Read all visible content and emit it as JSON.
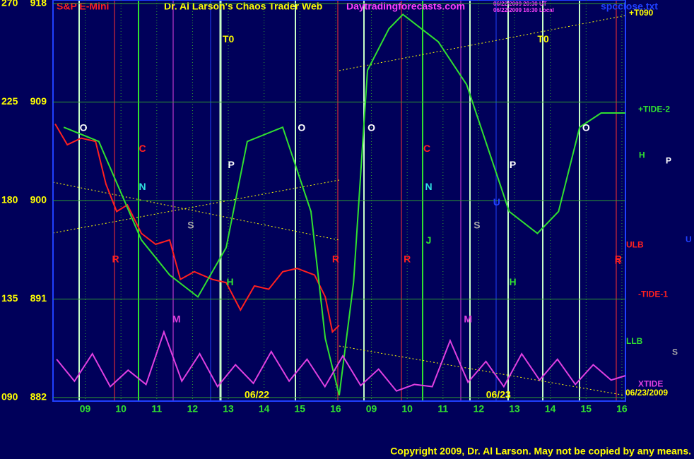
{
  "chart_data": {
    "type": "line",
    "title": "Dr. Al Larson's Chaos Trader Web",
    "instrument": "S&P E-Mini",
    "site": "Daytradingforecasts.com",
    "stamp": [
      "06/22/2009 20:30 UT",
      "06/22/2009 16:30 Local"
    ],
    "file": "spcclose.txt",
    "copyright": "Copyright 2009, Dr. Al Larson. May not be copied by any means.",
    "dates": [
      {
        "x": 5.8,
        "label": "06/22"
      },
      {
        "x": 12.55,
        "label": "06/23"
      }
    ],
    "xlim": [
      0.1,
      16.1
    ],
    "xticks": [
      {
        "value": 1,
        "label": "09"
      },
      {
        "value": 2,
        "label": "10"
      },
      {
        "value": 3,
        "label": "11"
      },
      {
        "value": 4,
        "label": "12"
      },
      {
        "value": 5,
        "label": "13"
      },
      {
        "value": 6,
        "label": "14"
      },
      {
        "value": 7,
        "label": "15"
      },
      {
        "value": 8,
        "label": "16"
      },
      {
        "value": 9,
        "label": "09"
      },
      {
        "value": 10,
        "label": "10"
      },
      {
        "value": 11,
        "label": "11"
      },
      {
        "value": 12,
        "label": "12"
      },
      {
        "value": 13,
        "label": "13"
      },
      {
        "value": 14,
        "label": "14"
      },
      {
        "value": 15,
        "label": "15"
      },
      {
        "value": 16,
        "label": "16"
      }
    ],
    "ylim": [
      882,
      918
    ],
    "yticks": [
      882,
      891,
      900,
      909,
      918
    ],
    "y2lim": [
      90,
      270
    ],
    "y2ticks": [
      {
        "value": 90,
        "label": "090"
      },
      135,
      180,
      225,
      270
    ],
    "grid": true,
    "series": [
      {
        "name": "price",
        "color": "#ff2020",
        "x": [
          0.16,
          0.5,
          0.89,
          1.29,
          1.58,
          1.88,
          2.18,
          2.57,
          2.97,
          3.36,
          3.66,
          4.05,
          4.55,
          4.94,
          5.34,
          5.73,
          6.13,
          6.52,
          6.92,
          7.41,
          7.71,
          7.91,
          8.1
        ],
        "values": [
          907,
          905.1,
          905.7,
          905.4,
          901.5,
          899,
          899.6,
          897,
          896,
          896.4,
          892.8,
          893.5,
          892.8,
          892.5,
          890,
          892.2,
          891.9,
          893.5,
          893.8,
          893.2,
          891.2,
          888,
          888.6
        ]
      },
      {
        "name": "flux",
        "color": "#30e030",
        "x": [
          0.4,
          1.38,
          2.57,
          3.36,
          4.15,
          4.94,
          5.53,
          6.52,
          7.31,
          7.71,
          8.1,
          8.5,
          8.89,
          9.49,
          9.88,
          10.87,
          11.66,
          12.85,
          13.64,
          14.23,
          14.82,
          15.42,
          16.1
        ],
        "values": [
          906.7,
          905.4,
          896.4,
          893.2,
          891.2,
          895.7,
          905.4,
          906.7,
          899,
          887.4,
          882.2,
          892.5,
          911.9,
          915.7,
          917,
          914.5,
          910.6,
          899,
          897,
          899,
          906.7,
          908,
          908
        ]
      },
      {
        "name": "xtide",
        "color": "#e040e0",
        "x": [
          0.2,
          0.7,
          1.2,
          1.7,
          2.2,
          2.7,
          3.2,
          3.7,
          4.2,
          4.7,
          5.2,
          5.7,
          6.2,
          6.7,
          7.2,
          7.7,
          8.2,
          8.7,
          9.2,
          9.7,
          10.2,
          10.7,
          11.2,
          11.7,
          12.2,
          12.7,
          13.2,
          13.7,
          14.2,
          14.7,
          15.2,
          15.7,
          16.1
        ],
        "values": [
          885.5,
          883.5,
          886,
          883,
          884.5,
          883.2,
          888,
          883.5,
          886,
          883,
          885,
          883.3,
          886.2,
          883.5,
          885.5,
          883,
          885.8,
          883.1,
          884.6,
          882.6,
          883.2,
          883,
          887.2,
          883.4,
          885.3,
          883,
          886,
          883.6,
          885.5,
          883.2,
          885,
          883.6,
          884
        ]
      }
    ],
    "annotations": [
      {
        "text": "O",
        "x": 0.95,
        "y": 906.6,
        "color": "#ffffff"
      },
      {
        "text": "C",
        "x": 2.6,
        "y": 904.7,
        "color": "#ff2020"
      },
      {
        "text": "N",
        "x": 2.6,
        "y": 901.2,
        "color": "#30e0e0"
      },
      {
        "text": "S",
        "x": 3.95,
        "y": 897.7,
        "color": "#aaaaaa"
      },
      {
        "text": "P",
        "x": 5.08,
        "y": 903.2,
        "color": "#ffffff"
      },
      {
        "text": "T0",
        "x": 5.0,
        "y": 914.7,
        "color": "#ffff00"
      },
      {
        "text": "R",
        "x": 1.85,
        "y": 894.6,
        "color": "#ff2020"
      },
      {
        "text": "M",
        "x": 3.55,
        "y": 889.1,
        "color": "#e040e0"
      },
      {
        "text": "H",
        "x": 5.05,
        "y": 892.5,
        "color": "#30e030"
      },
      {
        "text": "O",
        "x": 7.05,
        "y": 906.6,
        "color": "#ffffff"
      },
      {
        "text": "R",
        "x": 8.0,
        "y": 894.6,
        "color": "#ff2020"
      },
      {
        "text": "O",
        "x": 9.0,
        "y": 906.6,
        "color": "#ffffff"
      },
      {
        "text": "R",
        "x": 10.0,
        "y": 894.6,
        "color": "#ff2020"
      },
      {
        "text": "C",
        "x": 10.55,
        "y": 904.7,
        "color": "#ff2020"
      },
      {
        "text": "N",
        "x": 10.6,
        "y": 901.2,
        "color": "#30e0e0"
      },
      {
        "text": "J",
        "x": 10.6,
        "y": 896.3,
        "color": "#30e030"
      },
      {
        "text": "M",
        "x": 11.7,
        "y": 889.1,
        "color": "#e040e0"
      },
      {
        "text": "S",
        "x": 11.95,
        "y": 897.7,
        "color": "#aaaaaa"
      },
      {
        "text": "U",
        "x": 12.5,
        "y": 899.8,
        "color": "#2040ff"
      },
      {
        "text": "P",
        "x": 12.95,
        "y": 903.2,
        "color": "#ffffff"
      },
      {
        "text": "H",
        "x": 12.95,
        "y": 892.5,
        "color": "#30e030"
      },
      {
        "text": "T0",
        "x": 13.8,
        "y": 914.7,
        "color": "#ffff00"
      },
      {
        "text": "O",
        "x": 15.0,
        "y": 906.6,
        "color": "#ffffff"
      },
      {
        "text": "R",
        "x": 15.9,
        "y": 894.6,
        "color": "#ff2020"
      }
    ],
    "right_labels": [
      {
        "text": "+T090",
        "y": 917.1,
        "color": "#ffff00"
      },
      {
        "text": "+TIDE-2",
        "y": 908.3,
        "color": "#30e030"
      },
      {
        "text": "H",
        "y": 904.1,
        "color": "#30e030"
      },
      {
        "text": "P",
        "y": 903.6,
        "color": "#ffffff"
      },
      {
        "text": "U",
        "y": 896.4,
        "color": "#2040ff"
      },
      {
        "text": "ULB",
        "y": 895.9,
        "color": "#ff2020"
      },
      {
        "text": "R",
        "y": 894.4,
        "color": "#ff2020"
      },
      {
        "text": "-TIDE-1",
        "y": 891.4,
        "color": "#ff2020"
      },
      {
        "text": "LLB",
        "y": 887.1,
        "color": "#30e030"
      },
      {
        "text": "S",
        "y": 886.1,
        "color": "#aaaaaa"
      },
      {
        "text": "XTIDE",
        "y": 883.2,
        "color": "#e040e0"
      },
      {
        "text": "06/23/2009",
        "y": 882.4,
        "color": "#ffff00"
      }
    ]
  }
}
